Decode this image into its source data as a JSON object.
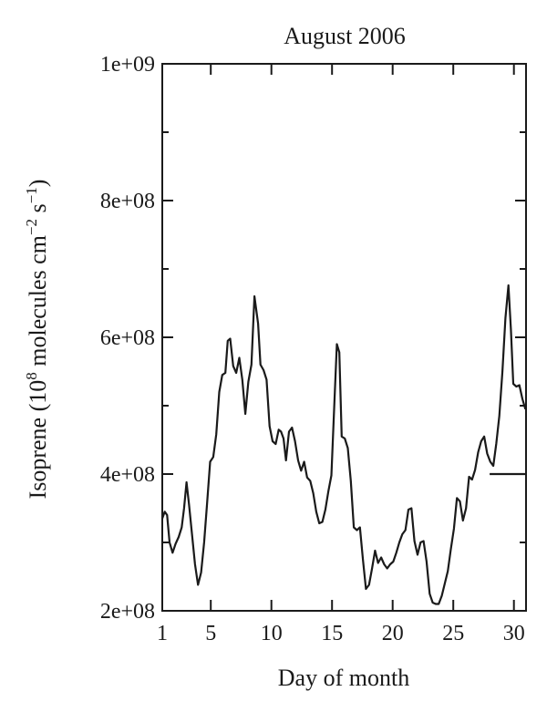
{
  "chart_data": {
    "type": "line",
    "title": "August 2006",
    "xlabel": "Day of month",
    "ylabel": {
      "prefix": "Isoprene (10",
      "exp1": "8",
      "middle": " molecules cm",
      "exp2": "−2",
      "middle2": " s",
      "exp3": "−1",
      "suffix": ")"
    },
    "xlim": [
      1,
      31
    ],
    "ylim": [
      200000000,
      1000000000
    ],
    "xticks": [
      1,
      5,
      10,
      15,
      20,
      25,
      30
    ],
    "xtick_labels": [
      "1",
      "5",
      "10",
      "15",
      "20",
      "25",
      "30"
    ],
    "yticks": [
      200000000,
      400000000,
      600000000,
      800000000,
      1000000000
    ],
    "ytick_labels": [
      "2e+08",
      "4e+08",
      "6e+08",
      "8e+08",
      "1e+09"
    ],
    "grid": false,
    "series": [
      {
        "x": [
          1.0,
          1.2,
          1.4,
          1.6,
          1.85,
          2.1,
          2.35,
          2.6,
          2.8,
          3.0,
          3.2,
          3.45,
          3.7,
          3.95,
          4.2,
          4.45,
          4.7,
          4.95,
          5.2,
          5.45,
          5.7,
          5.95,
          6.2,
          6.4,
          6.6,
          6.85,
          7.1,
          7.35,
          7.6,
          7.85,
          8.1,
          8.35,
          8.6,
          8.75,
          8.9,
          9.1,
          9.35,
          9.6,
          9.85,
          10.1,
          10.35,
          10.6,
          10.8,
          11.0,
          11.2,
          11.45,
          11.7,
          11.95,
          12.2,
          12.45,
          12.7,
          12.95,
          13.2,
          13.45,
          13.7,
          13.95,
          14.2,
          14.45,
          14.7,
          14.95,
          15.2,
          15.4,
          15.6,
          15.8,
          16.05,
          16.3,
          16.55,
          16.8,
          17.05,
          17.3,
          17.55,
          17.8,
          18.05,
          18.3,
          18.55,
          18.8,
          19.05,
          19.3,
          19.55,
          19.8,
          20.05,
          20.3,
          20.55,
          20.8,
          21.05,
          21.3,
          21.55,
          21.8,
          22.05,
          22.3,
          22.55,
          22.8,
          23.05,
          23.3,
          23.55,
          23.8,
          24.05,
          24.3,
          24.55,
          24.8,
          25.05,
          25.3,
          25.55,
          25.8,
          26.05,
          26.3,
          26.55,
          26.8,
          27.05,
          27.3,
          27.55,
          27.8,
          28.05,
          28.3,
          28.55,
          28.8,
          29.05,
          29.3,
          29.55,
          29.75,
          29.95,
          30.2,
          30.45,
          30.7,
          30.95
        ],
        "y": [
          335000000,
          345000000,
          340000000,
          300000000,
          285000000,
          298000000,
          308000000,
          322000000,
          350000000,
          388000000,
          356000000,
          312000000,
          268000000,
          238000000,
          256000000,
          300000000,
          358000000,
          418000000,
          425000000,
          458000000,
          520000000,
          545000000,
          548000000,
          595000000,
          598000000,
          558000000,
          548000000,
          570000000,
          538000000,
          488000000,
          535000000,
          560000000,
          660000000,
          640000000,
          620000000,
          560000000,
          552000000,
          538000000,
          470000000,
          448000000,
          444000000,
          465000000,
          462000000,
          452000000,
          420000000,
          462000000,
          468000000,
          448000000,
          420000000,
          405000000,
          418000000,
          395000000,
          390000000,
          372000000,
          345000000,
          328000000,
          330000000,
          348000000,
          375000000,
          398000000,
          508000000,
          590000000,
          578000000,
          455000000,
          452000000,
          438000000,
          390000000,
          322000000,
          318000000,
          322000000,
          275000000,
          232000000,
          238000000,
          262000000,
          288000000,
          270000000,
          278000000,
          268000000,
          262000000,
          268000000,
          272000000,
          285000000,
          300000000,
          312000000,
          318000000,
          348000000,
          350000000,
          302000000,
          282000000,
          300000000,
          302000000,
          272000000,
          225000000,
          212000000,
          210000000,
          210000000,
          222000000,
          240000000,
          258000000,
          290000000,
          320000000,
          365000000,
          360000000,
          332000000,
          350000000,
          396000000,
          392000000,
          406000000,
          432000000,
          448000000,
          455000000,
          430000000,
          418000000,
          412000000,
          445000000,
          485000000,
          550000000,
          628000000,
          676000000,
          612000000,
          532000000,
          528000000,
          530000000,
          510000000,
          495000000
        ]
      }
    ],
    "reference_line": {
      "x": [
        28.0,
        31.0
      ],
      "y": [
        400000000,
        400000000
      ]
    }
  }
}
